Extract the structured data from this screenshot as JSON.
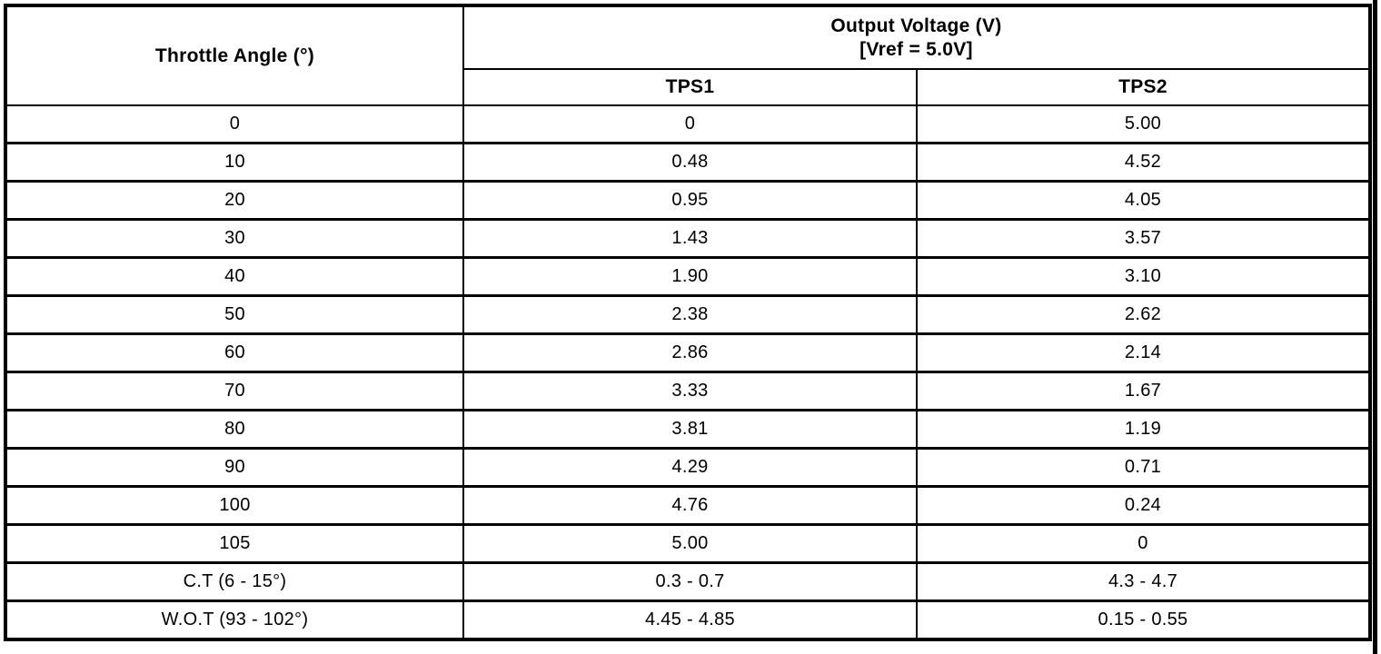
{
  "table": {
    "header": {
      "throttle_angle": "Throttle Angle (°)",
      "output_voltage_line1": "Output Voltage (V)",
      "output_voltage_line2": "[Vref = 5.0V]",
      "tps1": "TPS1",
      "tps2": "TPS2"
    },
    "rows": [
      {
        "angle": "0",
        "tps1": "0",
        "tps2": "5.00"
      },
      {
        "angle": "10",
        "tps1": "0.48",
        "tps2": "4.52"
      },
      {
        "angle": "20",
        "tps1": "0.95",
        "tps2": "4.05"
      },
      {
        "angle": "30",
        "tps1": "1.43",
        "tps2": "3.57"
      },
      {
        "angle": "40",
        "tps1": "1.90",
        "tps2": "3.10"
      },
      {
        "angle": "50",
        "tps1": "2.38",
        "tps2": "2.62"
      },
      {
        "angle": "60",
        "tps1": "2.86",
        "tps2": "2.14"
      },
      {
        "angle": "70",
        "tps1": "3.33",
        "tps2": "1.67"
      },
      {
        "angle": "80",
        "tps1": "3.81",
        "tps2": "1.19"
      },
      {
        "angle": "90",
        "tps1": "4.29",
        "tps2": "0.71"
      },
      {
        "angle": "100",
        "tps1": "4.76",
        "tps2": "0.24"
      },
      {
        "angle": "105",
        "tps1": "5.00",
        "tps2": "0"
      },
      {
        "angle": "C.T (6 - 15°)",
        "tps1": "0.3 - 0.7",
        "tps2": "4.3 - 4.7"
      },
      {
        "angle": "W.O.T (93 - 102°)",
        "tps1": "4.45 - 4.85",
        "tps2": "0.15 - 0.55"
      }
    ]
  },
  "colors": {
    "border": "#000000",
    "background": "#ffffff",
    "text": "#000000"
  },
  "chart_data": {
    "type": "table",
    "title": "Output Voltage (V) [Vref = 5.0V]",
    "columns": [
      "Throttle Angle (°)",
      "TPS1",
      "TPS2"
    ],
    "rows": [
      [
        "0",
        "0",
        "5.00"
      ],
      [
        "10",
        "0.48",
        "4.52"
      ],
      [
        "20",
        "0.95",
        "4.05"
      ],
      [
        "30",
        "1.43",
        "3.57"
      ],
      [
        "40",
        "1.90",
        "3.10"
      ],
      [
        "50",
        "2.38",
        "2.62"
      ],
      [
        "60",
        "2.86",
        "2.14"
      ],
      [
        "70",
        "3.33",
        "1.67"
      ],
      [
        "80",
        "3.81",
        "1.19"
      ],
      [
        "90",
        "4.29",
        "0.71"
      ],
      [
        "100",
        "4.76",
        "0.24"
      ],
      [
        "105",
        "5.00",
        "0"
      ],
      [
        "C.T (6 - 15°)",
        "0.3 - 0.7",
        "4.3 - 4.7"
      ],
      [
        "W.O.T (93 - 102°)",
        "4.45 - 4.85",
        "0.15 - 0.55"
      ]
    ]
  }
}
